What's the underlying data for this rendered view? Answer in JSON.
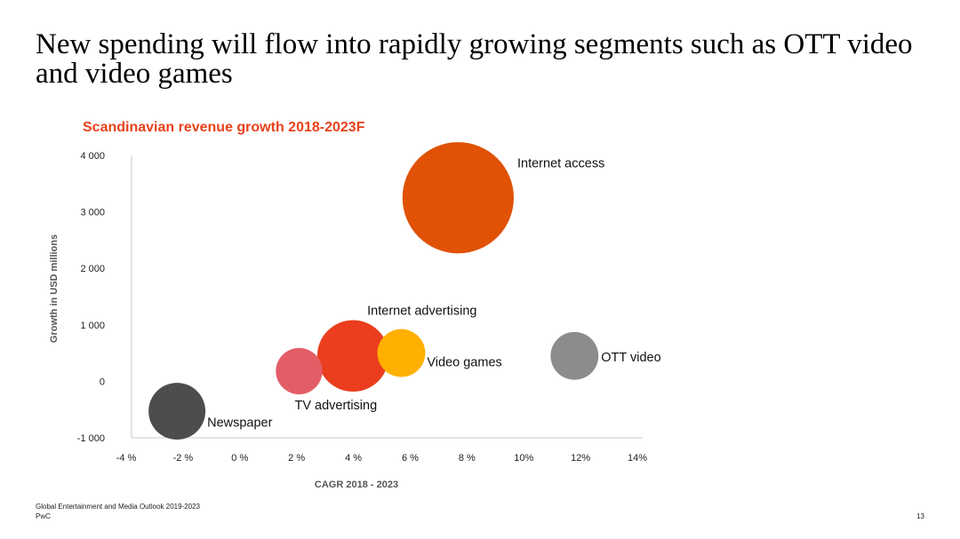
{
  "slide": {
    "title": "New spending will flow into rapidly growing segments such as OTT video and video games",
    "source": "Global Entertainment and Media Outlook 2019-2023",
    "brand": "PwC",
    "page_number": "13"
  },
  "chart_data": {
    "type": "scatter",
    "title": "Scandinavian revenue growth 2018-2023F",
    "xlabel": "CAGR 2018 - 2023",
    "ylabel": "Growth in USD millions",
    "xlim": [
      -4,
      14
    ],
    "ylim": [
      -1000,
      4000
    ],
    "x_tick_values": [
      -4,
      -2,
      0,
      2,
      4,
      6,
      8,
      10,
      12,
      14
    ],
    "x_tick_labels": [
      "-4 %",
      "-2 %",
      "0 %",
      "2 %",
      "4 %",
      "6 %",
      "8 %",
      "10%",
      "12%",
      "14%"
    ],
    "y_tick_values": [
      4000,
      3000,
      2000,
      1000,
      0,
      -1000
    ],
    "y_tick_labels": [
      "4 000",
      "3 000",
      "2 000",
      "1 000",
      "0",
      "-1 000"
    ],
    "grid": false,
    "series": [
      {
        "label": "Internet access",
        "x": 7.5,
        "y": 3250,
        "size": 4.6,
        "color": "#e05206",
        "label_position": "right-top"
      },
      {
        "label": "Internet advertising",
        "x": 3.8,
        "y": 450,
        "size": 1.9,
        "color": "#ea3e1f",
        "label_position": "above-right"
      },
      {
        "label": "Video games",
        "x": 5.5,
        "y": 500,
        "size": 0.85,
        "color": "#ffb000",
        "label_position": "right-below"
      },
      {
        "label": "OTT video",
        "x": 11.6,
        "y": 450,
        "size": 0.85,
        "color": "#8c8c8c",
        "label_position": "right"
      },
      {
        "label": "TV advertising",
        "x": 1.9,
        "y": 180,
        "size": 0.8,
        "color": "#e35d67",
        "label_position": "below-right"
      },
      {
        "label": "Newspaper",
        "x": -2.4,
        "y": -530,
        "size": 1.2,
        "color": "#4d4d4d",
        "label_position": "right-below"
      }
    ]
  }
}
